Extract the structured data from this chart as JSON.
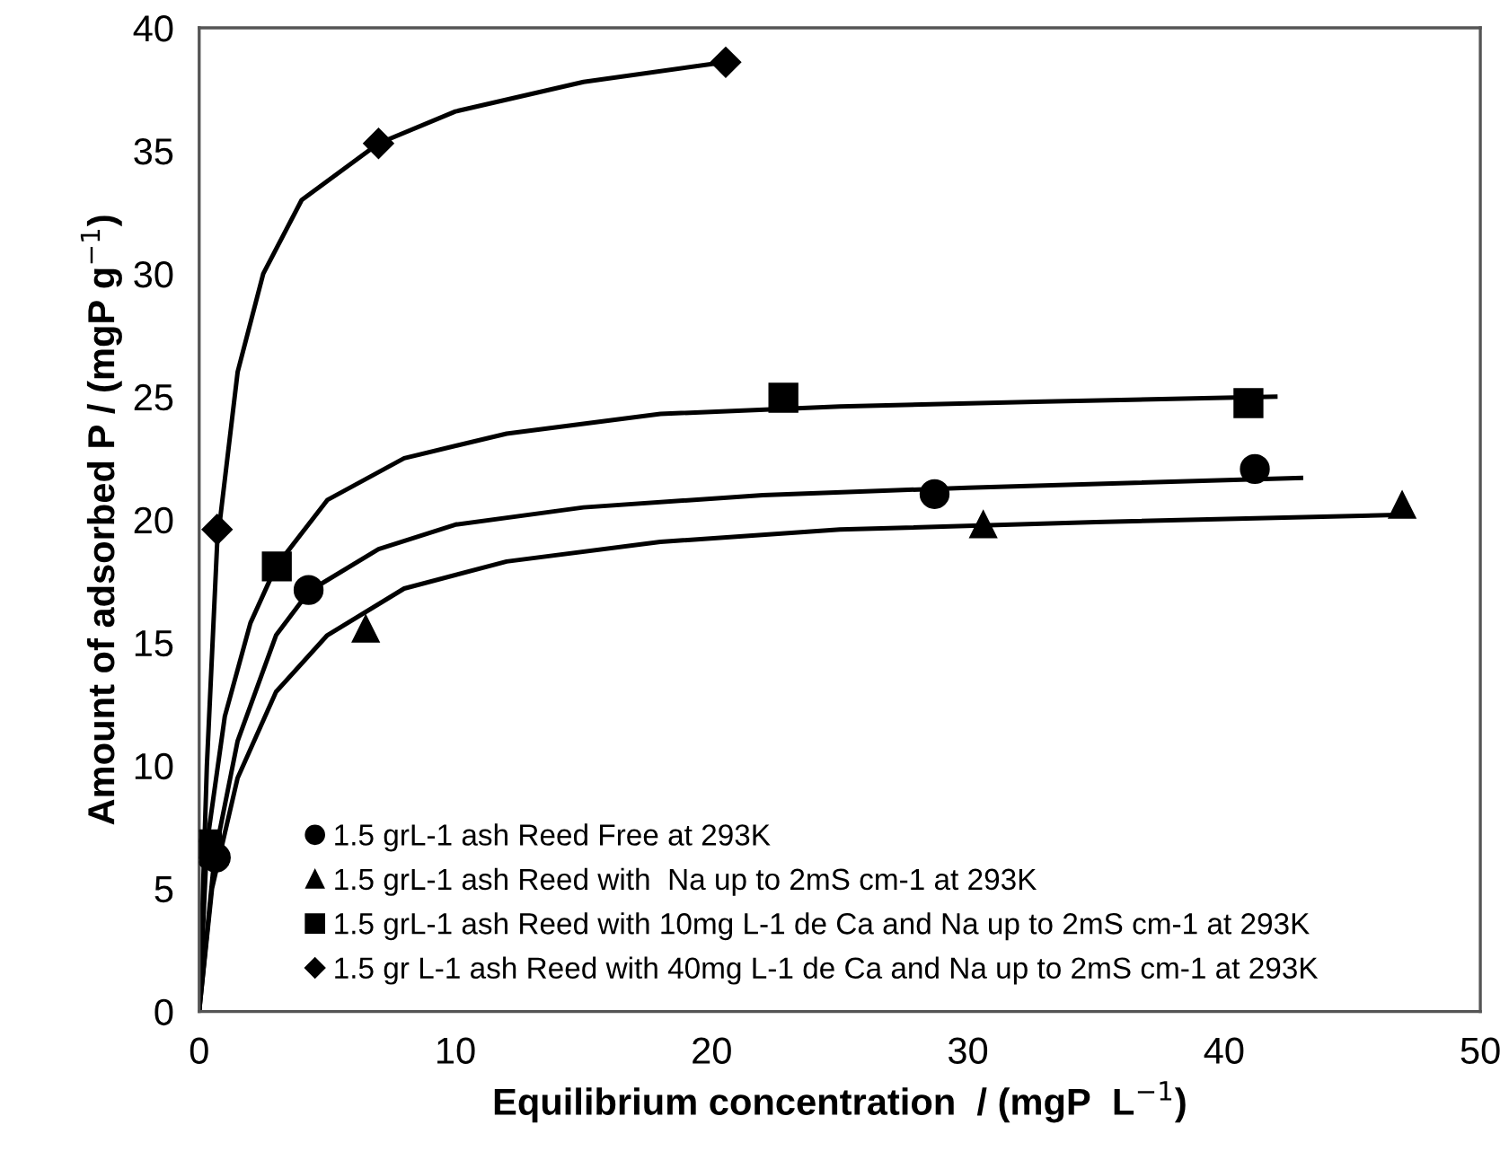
{
  "chart_data": {
    "type": "scatter",
    "xlabel": "Equilibrium concentration  / (mgP  L$^{−1}$)",
    "ylabel": "Amount of adsorbed P / (mgP g$^{−1}$)",
    "xlim": [
      0,
      50
    ],
    "xticks": [
      0,
      10,
      20,
      30,
      40,
      50
    ],
    "ylim": [
      0,
      40
    ],
    "yticks": [
      0,
      5,
      10,
      15,
      20,
      25,
      30,
      35,
      40
    ],
    "grid": false,
    "legend": "bottom left",
    "series": [
      {
        "name": "1.5 grL-1 ash Reed Free at 293K",
        "color": "#000000",
        "marker": "circle",
        "x": [
          0.65,
          4.27,
          28.7,
          41.2
        ],
        "values": [
          6.26,
          17.14,
          21.04,
          22.06
        ]
      },
      {
        "name": "1.5 grL-1 ash Reed with  Na up to 2mS cm-1 at 293K",
        "color": "#000000",
        "marker": "triangle",
        "x": [
          6.5,
          30.6,
          46.95
        ],
        "values": [
          15.56,
          19.8,
          20.6
        ]
      },
      {
        "name": "1.5 grL-1 ash Reed with 10mg L-1 de Ca and Na up to 2mS cm-1 at 293K",
        "color": "#000000",
        "marker": "square",
        "x": [
          0.3,
          3.03,
          22.8,
          40.95
        ],
        "values": [
          6.8,
          18.1,
          24.96,
          24.74
        ]
      },
      {
        "name": "1.5 gr L-1 ash Reed with 40mg L-1 de Ca and Na up to 2mS cm-1 at 293K",
        "color": "#000000",
        "marker": "diamond",
        "x": [
          0.1,
          0.7,
          7.0,
          20.55
        ],
        "values": [
          6.5,
          19.6,
          35.3,
          38.6
        ]
      },
      {
        "type": "line",
        "color": "#000000",
        "line_style": "solid",
        "x": [
          0,
          0.6,
          1.5,
          3,
          4.3,
          7,
          10,
          15,
          22,
          30,
          43
        ],
        "values": [
          0,
          6.3,
          11,
          15.3,
          17.1,
          18.8,
          19.8,
          20.5,
          21,
          21.3,
          21.7
        ]
      },
      {
        "type": "line",
        "color": "#000000",
        "line_style": "solid",
        "x": [
          0,
          0.5,
          1.5,
          3,
          5,
          8,
          12,
          18,
          25,
          35,
          47
        ],
        "values": [
          0,
          5,
          9.5,
          13,
          15.3,
          17.2,
          18.3,
          19.1,
          19.6,
          19.9,
          20.2
        ]
      },
      {
        "type": "line",
        "color": "#000000",
        "line_style": "solid",
        "x": [
          0,
          0.3,
          1,
          2,
          3,
          5,
          8,
          12,
          18,
          25,
          33,
          42
        ],
        "values": [
          0,
          6.8,
          12,
          15.8,
          18.1,
          20.8,
          22.5,
          23.5,
          24.3,
          24.6,
          24.8,
          25.0
        ]
      },
      {
        "type": "line",
        "color": "#000000",
        "line_style": "solid",
        "x": [
          0,
          0.3,
          0.7,
          1.5,
          2.5,
          4,
          7,
          10,
          15,
          20.5
        ],
        "values": [
          0,
          10,
          19,
          26,
          30,
          33,
          35.3,
          36.6,
          37.8,
          38.6
        ]
      }
    ]
  }
}
